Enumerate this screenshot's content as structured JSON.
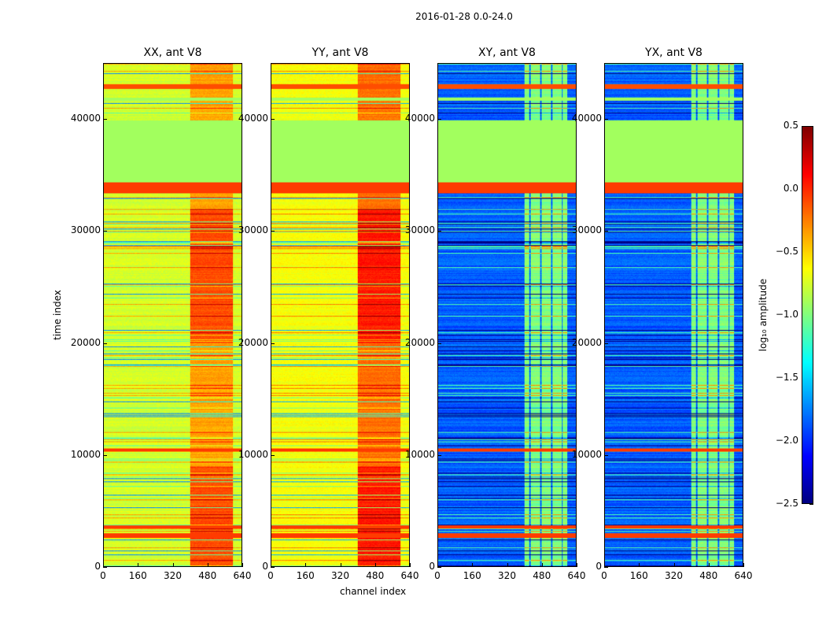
{
  "chart_data": {
    "type": "heatmap",
    "title": "2016-01-28 0.0-24.0",
    "xlabel": "channel index",
    "ylabel": "time index",
    "xlim": [
      0,
      640
    ],
    "ylim": [
      0,
      45000
    ],
    "xticks": [
      "0",
      "160",
      "320",
      "480",
      "640"
    ],
    "yticks": [
      "0",
      "10000",
      "20000",
      "30000",
      "40000"
    ],
    "colorbar": {
      "label": "log₁₀ amplitude",
      "colormap": "jet",
      "clim": [
        -2.5,
        0.5
      ],
      "ticks": [
        "0.5",
        "0.0",
        "−0.5",
        "−1.0",
        "−1.5",
        "−2.0",
        "−2.5"
      ]
    },
    "panels": [
      {
        "title": "XX, ant V8",
        "base_level": -0.75,
        "band_channels": [
          400,
          600
        ],
        "band_level": -0.35
      },
      {
        "title": "YY, ant V8",
        "base_level": -0.65,
        "band_channels": [
          400,
          600
        ],
        "band_level": -0.2
      },
      {
        "title": "XY, ant V8",
        "base_level": -1.85,
        "band_channels": [
          400,
          600
        ],
        "band_level": -1.0
      },
      {
        "title": "YX, ant V8",
        "base_level": -1.85,
        "band_channels": [
          400,
          600
        ],
        "band_level": -1.0
      }
    ],
    "flagged_rows": [
      {
        "from": 33400,
        "to": 34400,
        "level": -0.05
      },
      {
        "from": 34400,
        "to": 40000,
        "level": -0.9
      },
      {
        "from": 2600,
        "to": 3000,
        "level": -0.05
      },
      {
        "from": 3400,
        "to": 3700,
        "level": -0.05
      },
      {
        "from": 10300,
        "to": 10600,
        "level": -0.05
      },
      {
        "from": 42800,
        "to": 43200,
        "level": -0.1
      },
      {
        "from": 41700,
        "to": 42000,
        "level": -0.9
      }
    ]
  }
}
